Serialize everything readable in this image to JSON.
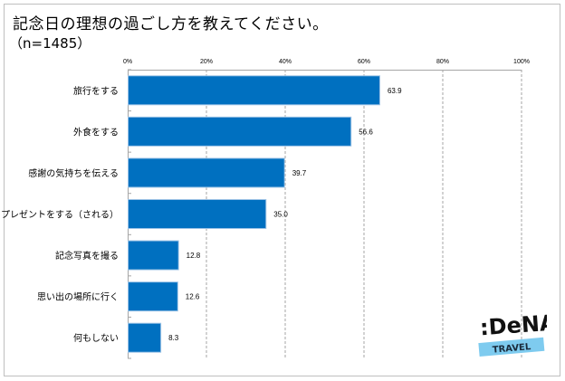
{
  "header": {
    "title": "記念日の理想の過ごし方を教えてください。",
    "sample": "（n=1485）"
  },
  "logo": {
    "brand": ":DeNA",
    "sub": "TRAVEL"
  },
  "colors": {
    "bar": "#0070c0",
    "bar_border": "#9dc3e6",
    "grid": "#a6a6a6",
    "logo_band": "#7ecbef"
  },
  "chart_data": {
    "type": "bar",
    "orientation": "horizontal",
    "title": "記念日の理想の過ごし方を教えてください。",
    "subtitle": "（n=1485）",
    "xlabel": "",
    "ylabel": "",
    "xlim": [
      0,
      100
    ],
    "ticks": [
      0,
      20,
      40,
      60,
      80,
      100
    ],
    "tick_labels": [
      "0%",
      "20%",
      "40%",
      "60%",
      "80%",
      "100%"
    ],
    "grid": true,
    "categories": [
      "旅行をする",
      "外食をする",
      "感謝の気持ちを伝える",
      "プレゼントをする（される）",
      "記念写真を撮る",
      "思い出の場所に行く",
      "何もしない"
    ],
    "values": [
      63.9,
      56.6,
      39.7,
      35.0,
      12.8,
      12.6,
      8.3
    ],
    "value_labels": [
      "63.9",
      "56.6",
      "39.7",
      "35.0",
      "12.8",
      "12.6",
      "8.3"
    ]
  }
}
